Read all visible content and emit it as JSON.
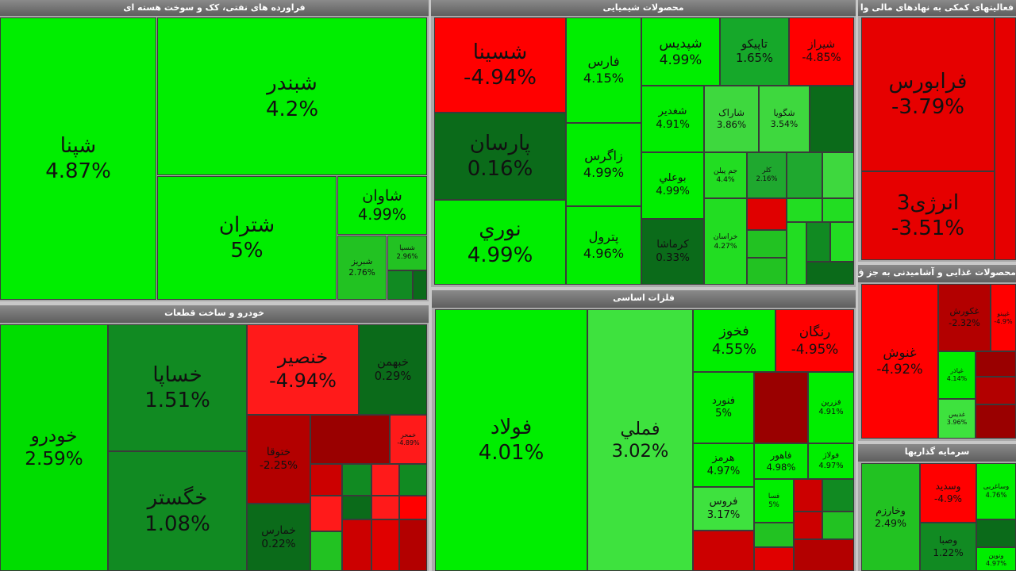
{
  "sections": [
    {
      "title": "فراورده های نفتی، کک و سوخت هسته ای",
      "tiles": [
        {
          "name": "شپنا",
          "change": "4.87%",
          "color": "#00ee00"
        },
        {
          "name": "شبندر",
          "change": "4.2%",
          "color": "#00ee00"
        },
        {
          "name": "شتران",
          "change": "5%",
          "color": "#00ee00"
        },
        {
          "name": "شاوان",
          "change": "4.99%",
          "color": "#00ee00"
        },
        {
          "name": "شبریز",
          "change": "2.76%",
          "color": "#22c222"
        },
        {
          "name": "شسپا",
          "change": "2.96%",
          "color": "#22c222"
        }
      ]
    },
    {
      "title": "محصولات شیمیایی",
      "tiles": [
        {
          "name": "شسینا",
          "change": "-4.94%",
          "color": "#ff0000"
        },
        {
          "name": "پارسان",
          "change": "0.16%",
          "color": "#0b6b1a"
        },
        {
          "name": "نوري",
          "change": "4.99%",
          "color": "#00ee00"
        },
        {
          "name": "فارس",
          "change": "4.15%",
          "color": "#00ee00"
        },
        {
          "name": "زاگرس",
          "change": "4.99%",
          "color": "#00ee00"
        },
        {
          "name": "پترول",
          "change": "4.96%",
          "color": "#00ee00"
        },
        {
          "name": "شپدیس",
          "change": "4.99%",
          "color": "#00ee00"
        },
        {
          "name": "تاپیکو",
          "change": "1.65%",
          "color": "#16a82a"
        },
        {
          "name": "شیراز",
          "change": "-4.85%",
          "color": "#ff0000"
        },
        {
          "name": "شغدیر",
          "change": "4.91%",
          "color": "#00ee00"
        },
        {
          "name": "شاراک",
          "change": "3.86%",
          "color": "#3ed83e"
        },
        {
          "name": "شگویا",
          "change": "3.54%",
          "color": "#3ed83e"
        },
        {
          "name": "بوعلي",
          "change": "4.99%",
          "color": "#00ee00"
        },
        {
          "name": "کرماشا",
          "change": "0.33%",
          "color": "#0b6b1a"
        },
        {
          "name": "جم پیلن",
          "change": "4.4%",
          "color": "#22dd22"
        },
        {
          "name": "کلر",
          "change": "2.16%",
          "color": "#1fa82f"
        },
        {
          "name": "خراسان",
          "change": "4.27%",
          "color": "#22dd22"
        }
      ]
    },
    {
      "title": "فعالیتهای کمکی به نهادهای مالی وا",
      "tiles": [
        {
          "name": "فرابورس",
          "change": "-3.79%",
          "color": "#e60000"
        },
        {
          "name": "انرژی3",
          "change": "-3.51%",
          "color": "#e60000"
        }
      ]
    },
    {
      "title": "خودرو و ساخت قطعات",
      "tiles": [
        {
          "name": "خودرو",
          "change": "2.59%",
          "color": "#00dd00"
        },
        {
          "name": "خساپا",
          "change": "1.51%",
          "color": "#118a22"
        },
        {
          "name": "خگستر",
          "change": "1.08%",
          "color": "#118a22"
        },
        {
          "name": "خنصیر",
          "change": "-4.94%",
          "color": "#ff1a1a"
        },
        {
          "name": "خبهمن",
          "change": "0.29%",
          "color": "#0b6b1a"
        },
        {
          "name": "ختوقا",
          "change": "-2.25%",
          "color": "#b30000"
        },
        {
          "name": "خمحر",
          "change": "-4.89%",
          "color": "#ff1a1a"
        },
        {
          "name": "خمارس",
          "change": "0.22%",
          "color": "#0b6b1a"
        }
      ]
    },
    {
      "title": "فلزات اساسی",
      "tiles": [
        {
          "name": "فولاد",
          "change": "4.01%",
          "color": "#00ee00"
        },
        {
          "name": "فملي",
          "change": "3.02%",
          "color": "#3ee23e"
        },
        {
          "name": "فخوز",
          "change": "4.55%",
          "color": "#00ee00"
        },
        {
          "name": "رنگان",
          "change": "-4.95%",
          "color": "#ff0000"
        },
        {
          "name": "فنورد",
          "change": "5%",
          "color": "#00ee00"
        },
        {
          "name": "فزرین",
          "change": "4.91%",
          "color": "#00ee00"
        },
        {
          "name": "هرمز",
          "change": "4.97%",
          "color": "#00ee00"
        },
        {
          "name": "فروس",
          "change": "3.17%",
          "color": "#3ee23e"
        },
        {
          "name": "فاهور",
          "change": "4.98%",
          "color": "#00ee00"
        },
        {
          "name": "فولاژ",
          "change": "4.97%",
          "color": "#00ee00"
        },
        {
          "name": "فسا",
          "change": "5%",
          "color": "#00ee00"
        }
      ]
    },
    {
      "title": "محصولات غذایی و آشامیدنی به جز ق",
      "tiles": [
        {
          "name": "غنوش",
          "change": "-4.92%",
          "color": "#ff0000"
        },
        {
          "name": "غکورش",
          "change": "-2.32%",
          "color": "#b30000"
        },
        {
          "name": "غپینو",
          "change": "-4.9%",
          "color": "#ff0000"
        },
        {
          "name": "غپاذر",
          "change": "4.14%",
          "color": "#00ee00"
        },
        {
          "name": "غدیس",
          "change": "3.96%",
          "color": "#3ee23e"
        }
      ]
    },
    {
      "title": "سرمایه گذاریها",
      "tiles": [
        {
          "name": "وخارزم",
          "change": "2.49%",
          "color": "#22c222"
        },
        {
          "name": "وسدید",
          "change": "-4.9%",
          "color": "#ff0000"
        },
        {
          "name": "وساغربی",
          "change": "4.76%",
          "color": "#00ee00"
        },
        {
          "name": "وصبا",
          "change": "1.22%",
          "color": "#118a22"
        },
        {
          "name": "ونوین",
          "change": "4.97%",
          "color": "#00ee00"
        }
      ]
    }
  ]
}
